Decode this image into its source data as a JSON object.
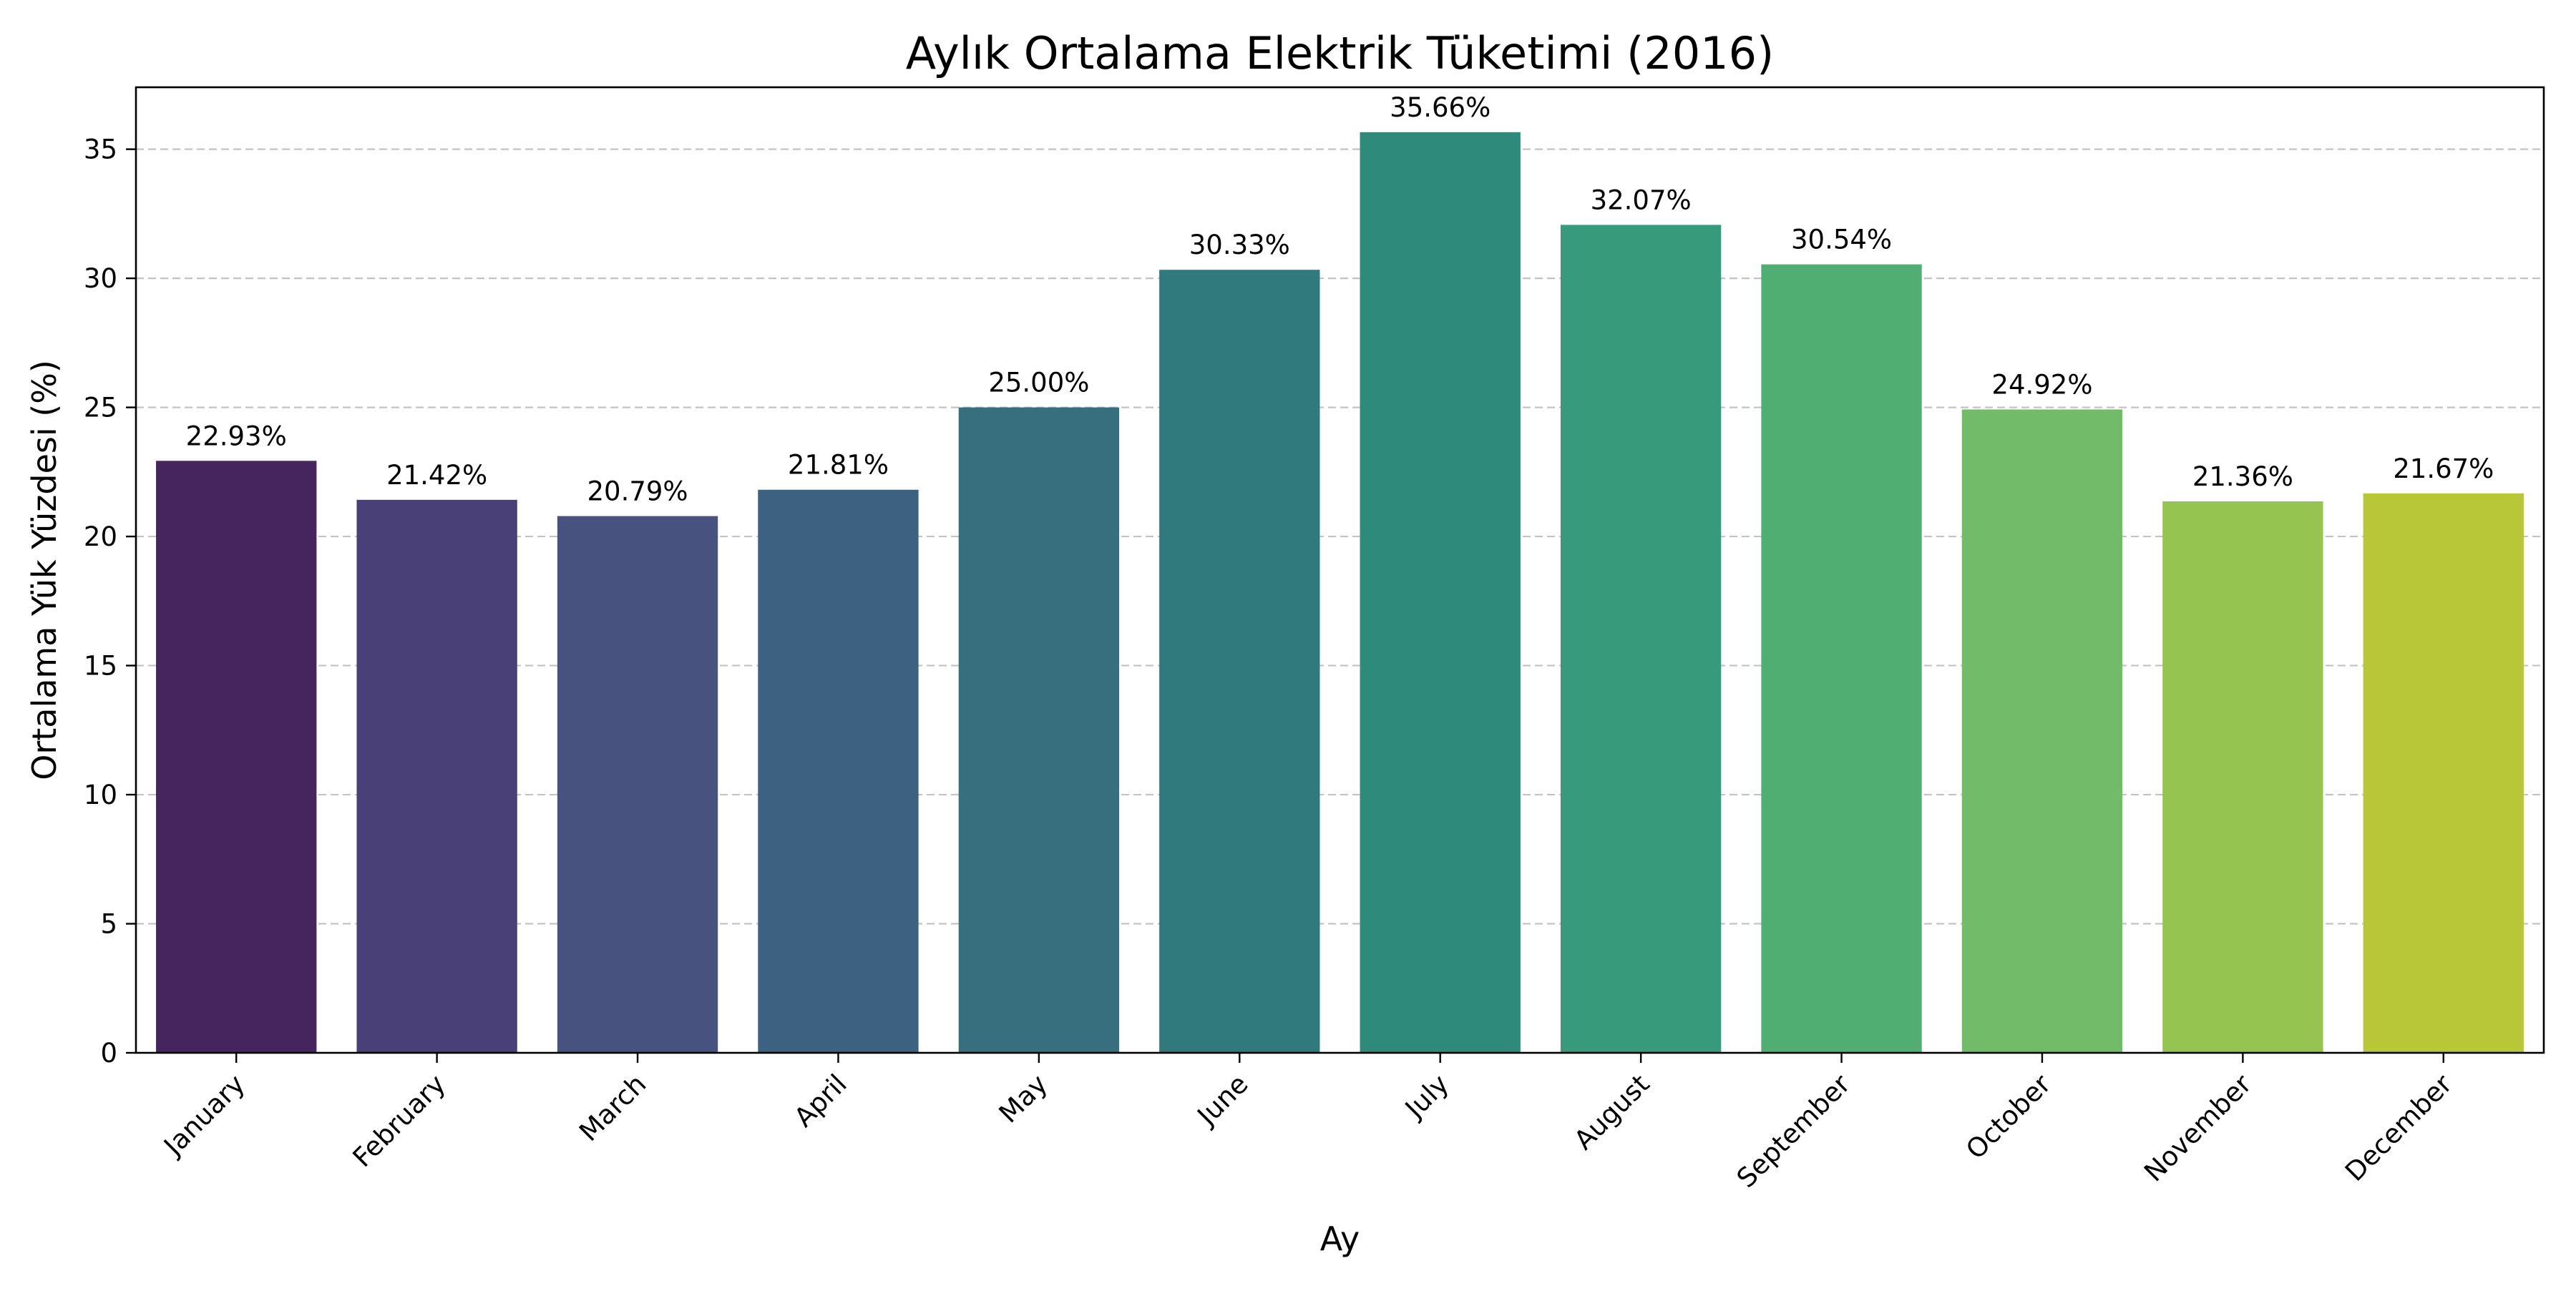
{
  "chart_data": {
    "type": "bar",
    "title": "Aylık Ortalama Elektrik Tüketimi (2016)",
    "xlabel": "Ay",
    "ylabel": "Ortalama Yük Yüzdesi (%)",
    "ylim": [
      0,
      37.4
    ],
    "yticks": [
      0,
      5,
      10,
      15,
      20,
      25,
      30,
      35
    ],
    "grid": "y-dashed",
    "categories": [
      "January",
      "February",
      "March",
      "April",
      "May",
      "June",
      "July",
      "August",
      "September",
      "October",
      "November",
      "December"
    ],
    "values": [
      22.93,
      21.42,
      20.79,
      21.81,
      25.0,
      30.33,
      35.66,
      32.07,
      30.54,
      24.92,
      21.36,
      21.67
    ],
    "value_labels": [
      "22.93%",
      "21.42%",
      "20.79%",
      "21.81%",
      "25.00%",
      "30.33%",
      "35.66%",
      "32.07%",
      "30.54%",
      "24.92%",
      "21.36%",
      "21.67%"
    ],
    "colors": [
      "#46255f",
      "#4a4078",
      "#47527f",
      "#3d6281",
      "#376f7f",
      "#30797d",
      "#2e8b7c",
      "#379b7b",
      "#51ae72",
      "#72bc69",
      "#96c450",
      "#b8c737"
    ]
  }
}
